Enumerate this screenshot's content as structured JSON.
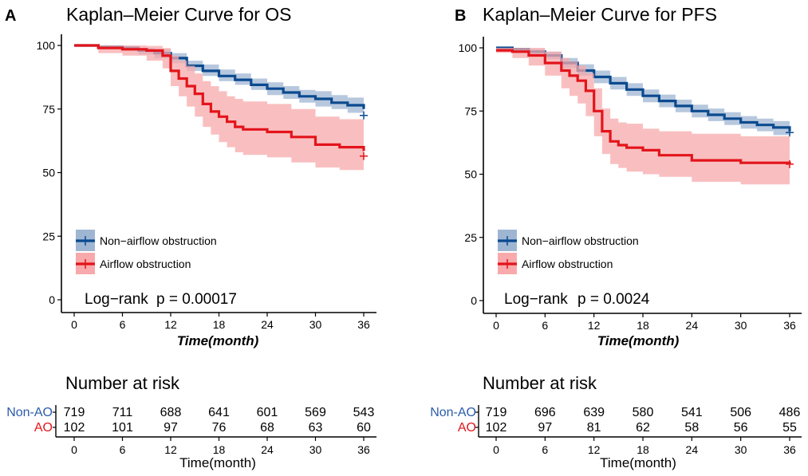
{
  "colors": {
    "non_ao": "#0b4a8f",
    "non_ao_band": "#9fb6d3",
    "ao": "#e3141b",
    "ao_band": "#f7a9ab",
    "axis": "#000000",
    "risk_non_ao_label": "#2a5caa",
    "risk_ao_label": "#e3141b"
  },
  "chart_data": [
    {
      "type": "line",
      "panel_label": "A",
      "title": "Kaplan–Meier Curve for OS",
      "xlabel": "Time(month)",
      "ylabel": "",
      "xlim": [
        0,
        36
      ],
      "ylim": [
        0,
        100
      ],
      "x_ticks": [
        0,
        6,
        12,
        18,
        24,
        30,
        36
      ],
      "y_ticks": [
        0,
        25,
        50,
        75,
        100
      ],
      "x_tick_labels": [
        "0",
        "6",
        "12",
        "18",
        "24",
        "30",
        "36"
      ],
      "y_tick_labels": [
        "0",
        "25",
        "50",
        "75",
        "100"
      ],
      "legend": [
        "Non−airflow obstruction",
        "Airflow obstruction"
      ],
      "legend_position": "bottom-left",
      "annotation": {
        "label": "Log−rank",
        "p": "p = 0.00017"
      },
      "series": [
        {
          "name": "Non−airflow obstruction",
          "x": [
            0,
            3,
            6,
            8,
            10,
            12,
            14,
            16,
            18,
            20,
            22,
            24,
            26,
            28,
            30,
            32,
            34,
            36
          ],
          "y": [
            100,
            99.5,
            99,
            98,
            97,
            95,
            92,
            90,
            88,
            86.5,
            84.5,
            83,
            81.5,
            80,
            79,
            77.5,
            76.5,
            75
          ],
          "lower": [
            100,
            99,
            98,
            96.5,
            95,
            93,
            90,
            88,
            86,
            84.5,
            82.5,
            80.5,
            79,
            77.5,
            76,
            75,
            73.5,
            72
          ],
          "upper": [
            100,
            100,
            99.8,
            99,
            98.5,
            97,
            94,
            92.5,
            90.5,
            89,
            87,
            85.5,
            84,
            82.5,
            82,
            80.5,
            79.5,
            78
          ],
          "censor_x": [
            36
          ],
          "censor_y": [
            72.5
          ]
        },
        {
          "name": "Airflow obstruction",
          "x": [
            0,
            3,
            6,
            9,
            11,
            12,
            13,
            14,
            15,
            16,
            17,
            18,
            19,
            20,
            21,
            24,
            27,
            30,
            33,
            36
          ],
          "y": [
            100,
            99,
            98.5,
            98,
            96,
            90,
            87,
            84,
            81,
            77,
            74,
            72,
            70,
            68,
            67,
            66,
            64,
            61,
            60,
            58.5
          ],
          "lower": [
            100,
            97,
            96,
            94,
            91,
            84,
            80,
            76,
            72,
            68,
            65,
            62,
            60,
            58,
            57,
            56,
            54,
            52,
            51,
            50
          ],
          "upper": [
            100,
            100,
            100,
            99.8,
            99,
            96,
            94,
            92,
            89,
            86,
            84,
            82,
            80,
            79,
            78,
            77,
            75,
            72,
            71,
            69
          ],
          "censor_x": [
            36
          ],
          "censor_y": [
            56.5
          ]
        }
      ],
      "risk_table": {
        "title": "Number at risk",
        "row_labels": [
          "Non-AO",
          "AO"
        ],
        "x_ticks": [
          0,
          6,
          12,
          18,
          24,
          30,
          36
        ],
        "x_tick_labels": [
          "0",
          "6",
          "12",
          "18",
          "24",
          "30",
          "36"
        ],
        "xlabel": "Time(month)",
        "rows": [
          [
            "719",
            "711",
            "688",
            "641",
            "601",
            "569",
            "543"
          ],
          [
            "102",
            "101",
            "97",
            "76",
            "68",
            "63",
            "60"
          ]
        ]
      }
    },
    {
      "type": "line",
      "panel_label": "B",
      "title": "Kaplan–Meier Curve for PFS",
      "xlabel": "Time(month)",
      "ylabel": "",
      "xlim": [
        0,
        36
      ],
      "ylim": [
        0,
        100
      ],
      "x_ticks": [
        0,
        6,
        12,
        18,
        24,
        30,
        36
      ],
      "y_ticks": [
        0,
        25,
        50,
        75,
        100
      ],
      "x_tick_labels": [
        "0",
        "6",
        "12",
        "18",
        "24",
        "30",
        "36"
      ],
      "y_tick_labels": [
        "0",
        "25",
        "50",
        "75",
        "100"
      ],
      "legend": [
        "Non−airflow obstruction",
        "Airflow obstruction"
      ],
      "legend_position": "bottom-left",
      "annotation": {
        "label": "Log−rank",
        "p": "p = 0.0024"
      },
      "series": [
        {
          "name": "Non−airflow obstruction",
          "x": [
            0,
            2,
            4,
            6,
            8,
            10,
            12,
            14,
            16,
            18,
            20,
            22,
            24,
            26,
            28,
            30,
            32,
            34,
            36
          ],
          "y": [
            100,
            99.5,
            98.5,
            97,
            94,
            91,
            88.5,
            86,
            83.5,
            81,
            79,
            77,
            75,
            73.5,
            72,
            70.5,
            69.5,
            68.5,
            67
          ],
          "lower": [
            100,
            99,
            97.5,
            95.5,
            92,
            89,
            86,
            83.5,
            81,
            78.5,
            76.5,
            74.5,
            72.5,
            71,
            69.5,
            68,
            67,
            65.5,
            64
          ],
          "upper": [
            100,
            100,
            99.5,
            98.5,
            96,
            93.5,
            91,
            88.5,
            86,
            83.5,
            81.5,
            79.5,
            77.5,
            76,
            74.5,
            73,
            72,
            71,
            70
          ],
          "censor_x": [
            36
          ],
          "censor_y": [
            66.5
          ]
        },
        {
          "name": "Airflow obstruction",
          "x": [
            0,
            2,
            4,
            6,
            8,
            9,
            10,
            11,
            12,
            13,
            14,
            15,
            16,
            18,
            20,
            24,
            30,
            36
          ],
          "y": [
            99,
            98.5,
            97,
            94,
            91,
            89,
            87,
            83,
            75,
            67,
            63,
            61.5,
            60.5,
            59.5,
            57.5,
            55.5,
            54.5,
            54
          ],
          "lower": [
            98,
            96,
            93,
            89,
            84,
            81,
            78,
            73,
            65,
            58,
            54,
            52.5,
            51,
            50,
            49,
            47,
            46,
            45
          ],
          "upper": [
            100,
            100,
            100,
            98.5,
            96,
            94.5,
            93,
            90,
            84,
            76,
            72,
            70.5,
            70,
            68,
            67,
            66,
            65,
            64
          ],
          "censor_x": [
            36
          ],
          "censor_y": [
            54
          ]
        }
      ],
      "risk_table": {
        "title": "Number at risk",
        "row_labels": [
          "Non-AO",
          "AO"
        ],
        "x_ticks": [
          0,
          6,
          12,
          18,
          24,
          30,
          36
        ],
        "x_tick_labels": [
          "0",
          "6",
          "12",
          "18",
          "24",
          "30",
          "36"
        ],
        "xlabel": "Time(month)",
        "rows": [
          [
            "719",
            "696",
            "639",
            "580",
            "541",
            "506",
            "486"
          ],
          [
            "102",
            "97",
            "81",
            "62",
            "58",
            "56",
            "55"
          ]
        ]
      }
    }
  ]
}
